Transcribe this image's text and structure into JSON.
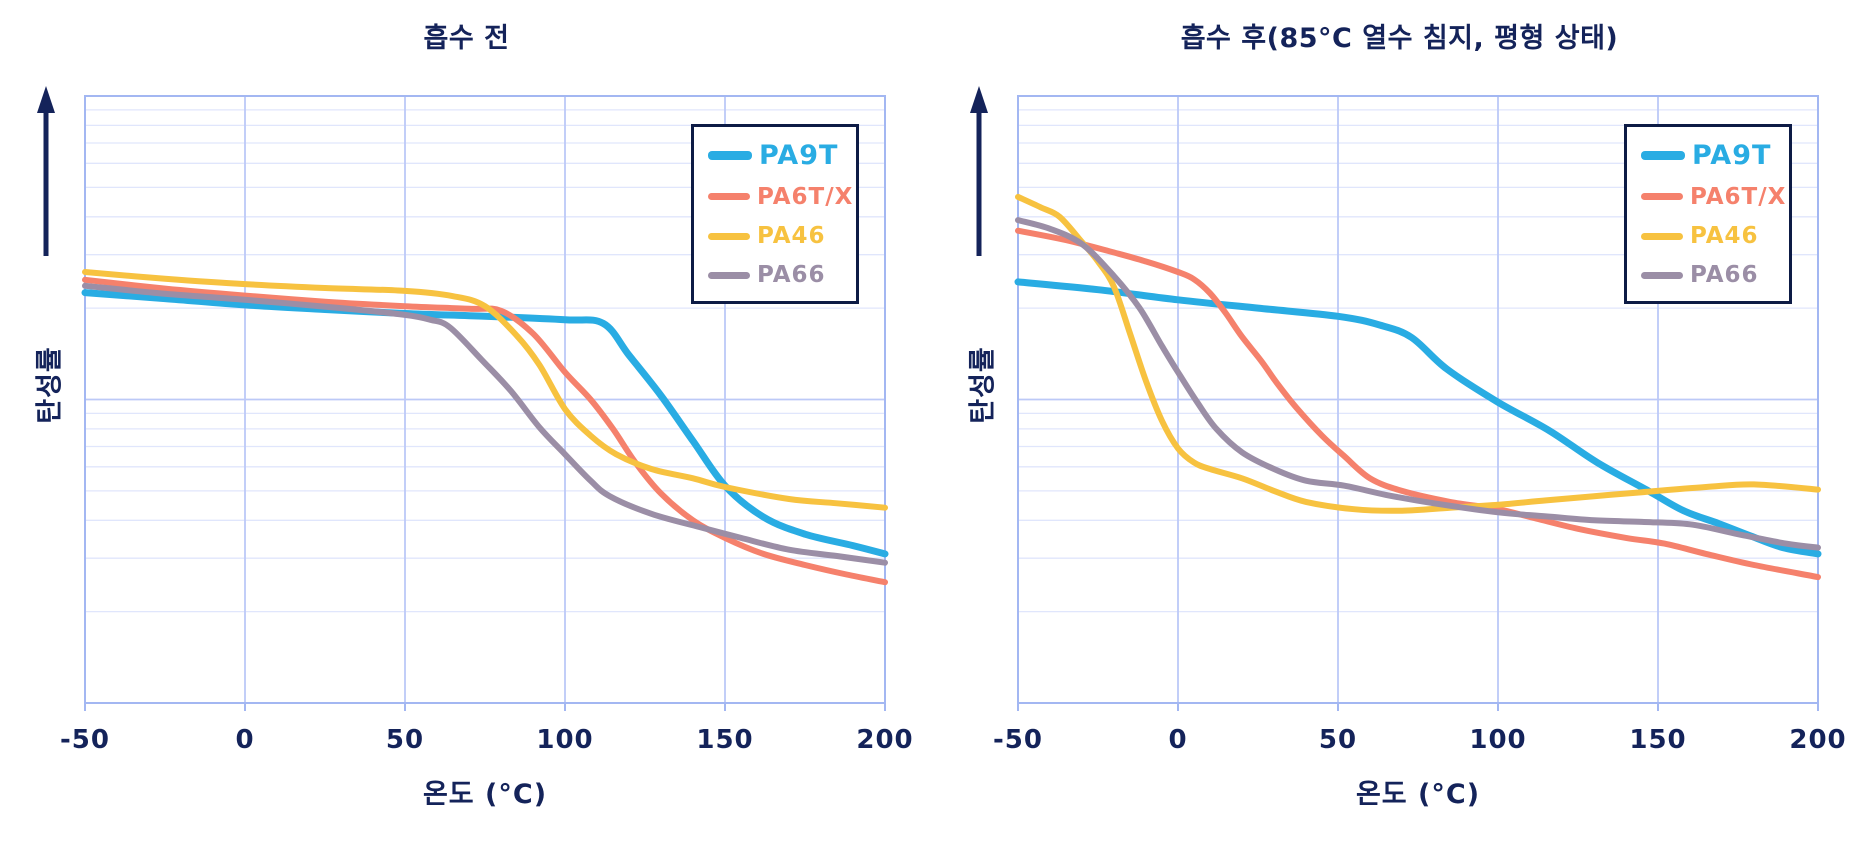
{
  "page": {
    "background": "#FFFFFF"
  },
  "colors": {
    "PA9T": "#29ACE3",
    "PA6T/X": "#F5816C",
    "PA46": "#F7C240",
    "PA66": "#9B8EA6",
    "axis_text": "#14235A",
    "grid_minor": "#E0E6FC",
    "grid_major": "#BCC9F7",
    "plot_border": "#A3B7F2",
    "legend_border": "#0D1B45"
  },
  "legend": {
    "entries": [
      {
        "label": "PA9T",
        "series": "PA9T",
        "emphasis": true
      },
      {
        "label": "PA6T/X",
        "series": "PA6T/X",
        "emphasis": false
      },
      {
        "label": "PA46",
        "series": "PA46",
        "emphasis": false
      },
      {
        "label": "PA66",
        "series": "PA66",
        "emphasis": false
      }
    ],
    "position": "top-right",
    "border_color": "#0D1B45"
  },
  "chart_data": [
    {
      "type": "line",
      "title": "흡수 전",
      "xlabel": "온도 (°C)",
      "ylabel": "탄성률",
      "x_ticks": [
        -50,
        0,
        50,
        100,
        150,
        200
      ],
      "x_range": [
        -50,
        200
      ],
      "y_scale": "log",
      "y_range": [
        1,
        100
      ],
      "y_axis_labeled": false,
      "grid": true,
      "y_arrow": "up",
      "series": [
        {
          "name": "PA9T",
          "color": "#29ACE3",
          "points": [
            [
              -50,
              22.5
            ],
            [
              -25,
              21.5
            ],
            [
              0,
              20.5
            ],
            [
              25,
              19.8
            ],
            [
              50,
              19.2
            ],
            [
              75,
              18.8
            ],
            [
              100,
              18.3
            ],
            [
              112,
              17.8
            ],
            [
              120,
              14.0
            ],
            [
              130,
              10.3
            ],
            [
              140,
              7.3
            ],
            [
              150,
              5.2
            ],
            [
              162,
              4.1
            ],
            [
              175,
              3.6
            ],
            [
              190,
              3.3
            ],
            [
              200,
              3.1
            ]
          ]
        },
        {
          "name": "PA6T/X",
          "color": "#F5816C",
          "points": [
            [
              -50,
              24.8
            ],
            [
              -25,
              23.2
            ],
            [
              0,
              22.0
            ],
            [
              25,
              21.0
            ],
            [
              50,
              20.3
            ],
            [
              70,
              19.9
            ],
            [
              80,
              19.6
            ],
            [
              90,
              16.5
            ],
            [
              100,
              12.3
            ],
            [
              108,
              10.0
            ],
            [
              115,
              8.0
            ],
            [
              122,
              6.2
            ],
            [
              130,
              4.9
            ],
            [
              140,
              4.0
            ],
            [
              150,
              3.5
            ],
            [
              162,
              3.1
            ],
            [
              175,
              2.85
            ],
            [
              188,
              2.65
            ],
            [
              200,
              2.5
            ]
          ]
        },
        {
          "name": "PA46",
          "color": "#F7C240",
          "points": [
            [
              -50,
              26.3
            ],
            [
              -25,
              25.0
            ],
            [
              0,
              24.0
            ],
            [
              25,
              23.3
            ],
            [
              50,
              22.8
            ],
            [
              65,
              21.9
            ],
            [
              75,
              20.3
            ],
            [
              85,
              16.2
            ],
            [
              92,
              13.0
            ],
            [
              100,
              9.3
            ],
            [
              108,
              7.6
            ],
            [
              116,
              6.6
            ],
            [
              127,
              5.9
            ],
            [
              140,
              5.5
            ],
            [
              150,
              5.15
            ],
            [
              170,
              4.7
            ],
            [
              185,
              4.55
            ],
            [
              200,
              4.4
            ]
          ]
        },
        {
          "name": "PA66",
          "color": "#9B8EA6",
          "points": [
            [
              -50,
              23.7
            ],
            [
              -25,
              22.3
            ],
            [
              0,
              21.3
            ],
            [
              30,
              20.0
            ],
            [
              50,
              19.0
            ],
            [
              58,
              18.3
            ],
            [
              64,
              17.3
            ],
            [
              74,
              13.5
            ],
            [
              83,
              10.7
            ],
            [
              92,
              8.1
            ],
            [
              100,
              6.6
            ],
            [
              108,
              5.4
            ],
            [
              114,
              4.8
            ],
            [
              127,
              4.2
            ],
            [
              142,
              3.8
            ],
            [
              155,
              3.5
            ],
            [
              170,
              3.2
            ],
            [
              185,
              3.05
            ],
            [
              200,
              2.9
            ]
          ]
        }
      ]
    },
    {
      "type": "line",
      "title": "흡수 후(85°C 열수 침지, 평형 상태)",
      "xlabel": "온도 (°C)",
      "ylabel": "탄성률",
      "x_ticks": [
        -50,
        0,
        50,
        100,
        150,
        200
      ],
      "x_range": [
        -50,
        200
      ],
      "y_scale": "log",
      "y_range": [
        1,
        100
      ],
      "y_axis_labeled": false,
      "grid": true,
      "y_arrow": "up",
      "series": [
        {
          "name": "PA9T",
          "color": "#29ACE3",
          "points": [
            [
              -50,
              24.4
            ],
            [
              -25,
              23.0
            ],
            [
              0,
              21.3
            ],
            [
              25,
              20.0
            ],
            [
              50,
              18.8
            ],
            [
              63,
              17.6
            ],
            [
              73,
              16.0
            ],
            [
              84,
              12.6
            ],
            [
              100,
              9.8
            ],
            [
              116,
              7.9
            ],
            [
              131,
              6.2
            ],
            [
              147,
              5.0
            ],
            [
              158,
              4.3
            ],
            [
              169,
              3.9
            ],
            [
              179,
              3.55
            ],
            [
              189,
              3.25
            ],
            [
              200,
              3.1
            ]
          ]
        },
        {
          "name": "PA6T/X",
          "color": "#F5816C",
          "points": [
            [
              -50,
              36.0
            ],
            [
              -35,
              33.5
            ],
            [
              -20,
              30.5
            ],
            [
              -10,
              28.5
            ],
            [
              0,
              26.3
            ],
            [
              5,
              24.9
            ],
            [
              10,
              22.4
            ],
            [
              15,
              19.2
            ],
            [
              20,
              16.1
            ],
            [
              26,
              13.4
            ],
            [
              31,
              11.3
            ],
            [
              37,
              9.4
            ],
            [
              45,
              7.6
            ],
            [
              52,
              6.5
            ],
            [
              60,
              5.5
            ],
            [
              70,
              5.0
            ],
            [
              85,
              4.6
            ],
            [
              100,
              4.35
            ],
            [
              112,
              4.05
            ],
            [
              125,
              3.75
            ],
            [
              140,
              3.5
            ],
            [
              152,
              3.35
            ],
            [
              165,
              3.1
            ],
            [
              180,
              2.85
            ],
            [
              200,
              2.6
            ]
          ]
        },
        {
          "name": "PA46",
          "color": "#F7C240",
          "points": [
            [
              -50,
              46.5
            ],
            [
              -43,
              43.0
            ],
            [
              -37,
              40.0
            ],
            [
              -30,
              33.0
            ],
            [
              -25,
              28.5
            ],
            [
              -20,
              23.5
            ],
            [
              -15,
              16.5
            ],
            [
              -10,
              11.5
            ],
            [
              -5,
              8.5
            ],
            [
              0,
              6.9
            ],
            [
              5,
              6.2
            ],
            [
              10,
              5.9
            ],
            [
              20,
              5.5
            ],
            [
              30,
              5.0
            ],
            [
              40,
              4.6
            ],
            [
              55,
              4.35
            ],
            [
              70,
              4.3
            ],
            [
              85,
              4.4
            ],
            [
              100,
              4.5
            ],
            [
              115,
              4.65
            ],
            [
              130,
              4.8
            ],
            [
              145,
              4.95
            ],
            [
              165,
              5.15
            ],
            [
              180,
              5.25
            ],
            [
              200,
              5.05
            ]
          ]
        },
        {
          "name": "PA66",
          "color": "#9B8EA6",
          "points": [
            [
              -50,
              39.0
            ],
            [
              -40,
              36.5
            ],
            [
              -30,
              32.5
            ],
            [
              -20,
              25.5
            ],
            [
              -12,
              20.0
            ],
            [
              -5,
              15.0
            ],
            [
              0,
              12.3
            ],
            [
              6,
              9.8
            ],
            [
              12,
              8.0
            ],
            [
              20,
              6.7
            ],
            [
              30,
              5.9
            ],
            [
              40,
              5.4
            ],
            [
              52,
              5.2
            ],
            [
              65,
              4.85
            ],
            [
              80,
              4.55
            ],
            [
              100,
              4.25
            ],
            [
              115,
              4.12
            ],
            [
              130,
              4.0
            ],
            [
              145,
              3.95
            ],
            [
              160,
              3.88
            ],
            [
              175,
              3.6
            ],
            [
              190,
              3.35
            ],
            [
              200,
              3.25
            ]
          ]
        }
      ]
    }
  ]
}
